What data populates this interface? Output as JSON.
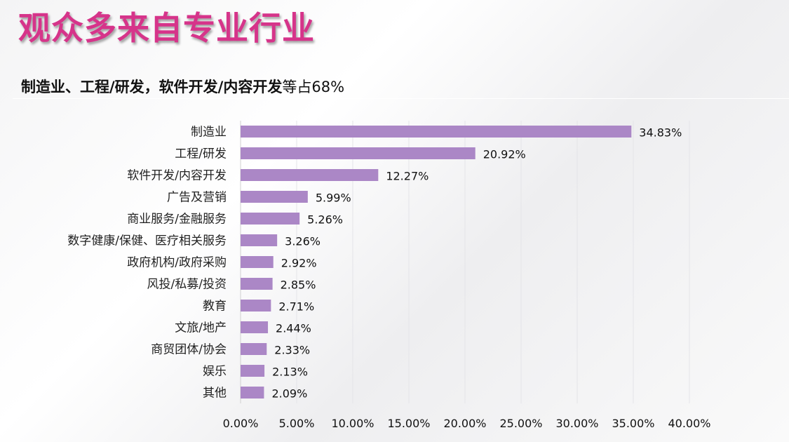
{
  "title": "观众多来自专业行业",
  "subtitle": {
    "bold": "制造业、工程/研发，软件开发/内容开发",
    "normal": "等占68%"
  },
  "chart_data": {
    "type": "bar",
    "orientation": "horizontal",
    "categories": [
      "制造业",
      "工程/研发",
      "软件开发/内容开发",
      "广告及营销",
      "商业服务/金融服务",
      "数字健康/保健、医疗相关服务",
      "政府机构/政府采购",
      "风投/私募/投资",
      "教育",
      "文旅/地产",
      "商贸团体/协会",
      "娱乐",
      "其他"
    ],
    "values": [
      34.83,
      20.92,
      12.27,
      5.99,
      5.26,
      3.26,
      2.92,
      2.85,
      2.71,
      2.44,
      2.33,
      2.13,
      2.09
    ],
    "data_labels": [
      "34.83%",
      "20.92%",
      "12.27%",
      "5.99%",
      "5.26%",
      "3.26%",
      "2.92%",
      "2.85%",
      "2.71%",
      "2.44%",
      "2.33%",
      "2.13%",
      "2.09%"
    ],
    "xlim": [
      0,
      40
    ],
    "x_ticks": [
      "0.00%",
      "5.00%",
      "10.00%",
      "15.00%",
      "20.00%",
      "25.00%",
      "30.00%",
      "35.00%",
      "40.00%"
    ],
    "grid": true,
    "bar_color": "#ab87c6",
    "title_color": "#d6348a"
  }
}
